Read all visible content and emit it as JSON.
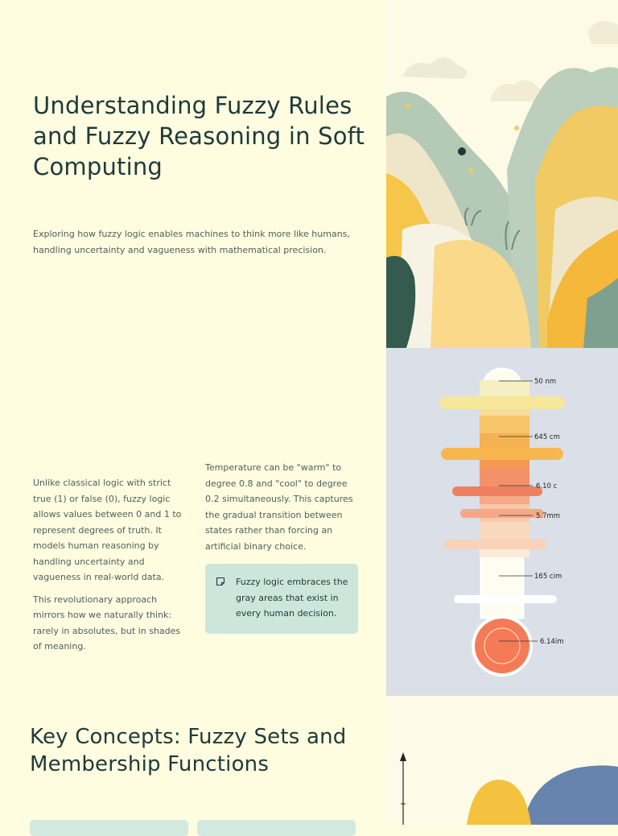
{
  "hero": {
    "title": "Understanding Fuzzy Rules and Fuzzy Reasoning in Soft Computing",
    "subtitle": "Exploring how fuzzy logic enables machines to think more like humans, handling uncertainty and vagueness with mathematical precision."
  },
  "intro": {
    "col_left": [
      "Unlike classical logic with strict true (1) or false (0), fuzzy logic allows values between 0 and 1 to represent degrees of truth. It models human reasoning by handling uncertainty and vagueness in real-world data.",
      "This revolutionary approach mirrors how we naturally think: rarely in absolutes, but in shades of meaning."
    ],
    "col_right": "Temperature can be \"warm\" to degree 0.8 and \"cool\" to degree 0.2 simultaneously. This captures the gradual transition between states rather than forcing an artificial binary choice.",
    "callout": {
      "icon": "note-icon",
      "text": "Fuzzy logic embraces the gray areas that exist in every human decision."
    }
  },
  "section": {
    "title": "Key Concepts: Fuzzy Sets and Membership Functions"
  },
  "thermometer": {
    "labels": [
      "50 nm",
      "645 cm",
      "6.10 c",
      "5.7mm",
      "165 cim",
      "6.14im"
    ]
  },
  "colors": {
    "background": "#fffce0",
    "heading": "#1e3a3a",
    "body_text": "#4e5f5d",
    "callout_bg": "#cce6dc",
    "panel_bg": "#dbdfe7"
  }
}
